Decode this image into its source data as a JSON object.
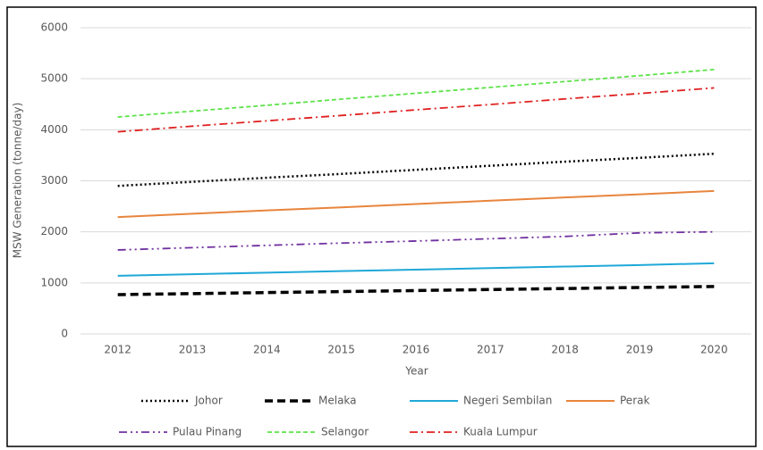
{
  "chart_data": {
    "type": "line",
    "x_label": "Year",
    "y_label": "MSW Generation (tonne/day)",
    "categories": [
      "2012",
      "2013",
      "2014",
      "2015",
      "2016",
      "2017",
      "2018",
      "2019",
      "2020"
    ],
    "ylim": [
      0,
      6000
    ],
    "yticks": [
      0,
      1000,
      2000,
      3000,
      4000,
      5000,
      6000
    ],
    "grid": true,
    "legend": "bottom",
    "series": [
      {
        "name": "Johor",
        "color": "#000000",
        "style": "dotted",
        "values": [
          2900,
          2980,
          3060,
          3135,
          3215,
          3295,
          3375,
          3450,
          3530
        ]
      },
      {
        "name": "Melaka",
        "color": "#000000",
        "style": "dashed-thick",
        "values": [
          770,
          790,
          810,
          830,
          850,
          870,
          890,
          910,
          930
        ]
      },
      {
        "name": "Negeri Sembilan",
        "color": "#1fa8d8",
        "style": "solid",
        "values": [
          1140,
          1170,
          1200,
          1230,
          1260,
          1290,
          1320,
          1350,
          1385
        ]
      },
      {
        "name": "Perak",
        "color": "#e8853d",
        "style": "solid",
        "values": [
          2290,
          2355,
          2420,
          2480,
          2545,
          2610,
          2675,
          2735,
          2800
        ]
      },
      {
        "name": "Pulau Pinang",
        "color": "#7030a0",
        "style": "dash-dot-dot",
        "values": [
          1645,
          1690,
          1735,
          1780,
          1820,
          1865,
          1910,
          1980,
          2000
        ]
      },
      {
        "name": "Selangor",
        "color": "#5ee34a",
        "style": "dashed",
        "values": [
          4250,
          4365,
          4480,
          4600,
          4715,
          4830,
          4945,
          5060,
          5180
        ]
      },
      {
        "name": "Kuala Lumpur",
        "color": "#e02020",
        "style": "dash-dot",
        "values": [
          3960,
          4070,
          4175,
          4280,
          4390,
          4495,
          4605,
          4710,
          4820
        ]
      }
    ]
  }
}
